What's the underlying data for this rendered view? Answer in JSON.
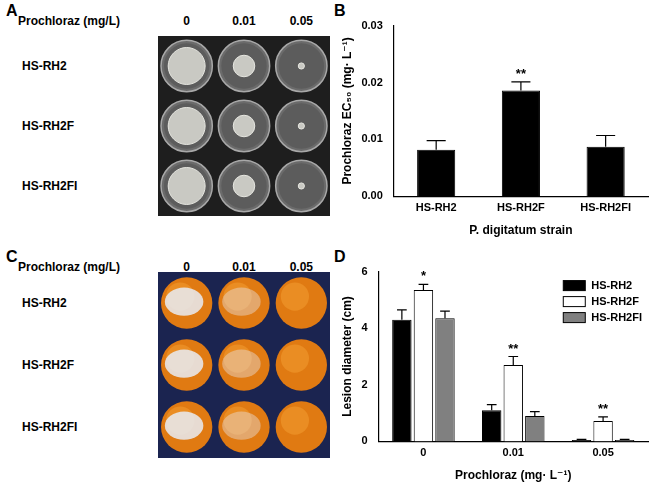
{
  "panels": [
    {
      "label": "A",
      "kind": "photo",
      "header": "Prochloraz (mg/L)",
      "columns": [
        "0",
        "0.01",
        "0.05"
      ],
      "rows": [
        "HS-RH2",
        "HS-RH2F",
        "HS-RH2FI"
      ]
    },
    {
      "label": "C",
      "kind": "photo",
      "header": "Prochloraz (mg/L)",
      "columns": [
        "0",
        "0.01",
        "0.05"
      ],
      "rows": [
        "HS-RH2",
        "HS-RH2F",
        "HS-RH2FI"
      ]
    }
  ],
  "chart_data": [
    {
      "label": "B",
      "type": "bar",
      "x_label": "P. digitatum strain",
      "y_label": "Prochloraz EC₅₀ (mg· L⁻¹)",
      "categories": [
        "HS-RH2",
        "HS-RH2F",
        "HS-RH2FI"
      ],
      "values": [
        0.0082,
        0.0186,
        0.0087
      ],
      "errors": [
        0.0016,
        0.0015,
        0.002
      ],
      "color": "#000000",
      "ylim": [
        0,
        0.03
      ],
      "yticks": [
        {
          "value": 0,
          "label": "0.00"
        },
        {
          "value": 0.01,
          "label": "0.01"
        },
        {
          "value": 0.02,
          "label": "0.02"
        },
        {
          "value": 0.03,
          "label": "0.03"
        }
      ],
      "grid": false,
      "annotations": [
        {
          "category": "HS-RH2F",
          "text": "**"
        }
      ]
    },
    {
      "label": "D",
      "type": "bar",
      "x_label": "Prochloraz (mg· L⁻¹)",
      "y_label": "Lesion diameter (cm)",
      "categories": [
        "0",
        "0.01",
        "0.05"
      ],
      "series": [
        {
          "name": "HS-RH2",
          "color": "#000000",
          "values": [
            4.3,
            1.1,
            0.05
          ],
          "errors": [
            0.35,
            0.2,
            0.02
          ]
        },
        {
          "name": "HS-RH2F",
          "color": "#ffffff",
          "values": [
            5.35,
            2.7,
            0.72
          ],
          "errors": [
            0.2,
            0.3,
            0.15
          ]
        },
        {
          "name": "HS-RH2FI",
          "color": "#808080",
          "values": [
            4.35,
            0.9,
            0.05
          ],
          "errors": [
            0.25,
            0.15,
            0.02
          ]
        }
      ],
      "ylim": [
        0,
        6
      ],
      "yticks": [
        0,
        2,
        4,
        6
      ],
      "grid": false,
      "legend": "top right",
      "annotations": [
        {
          "category": "0",
          "series": "HS-RH2F",
          "text": "*"
        },
        {
          "category": "0.01",
          "series": "HS-RH2F",
          "text": "**"
        },
        {
          "category": "0.05",
          "series": "HS-RH2F",
          "text": "**"
        }
      ]
    }
  ]
}
